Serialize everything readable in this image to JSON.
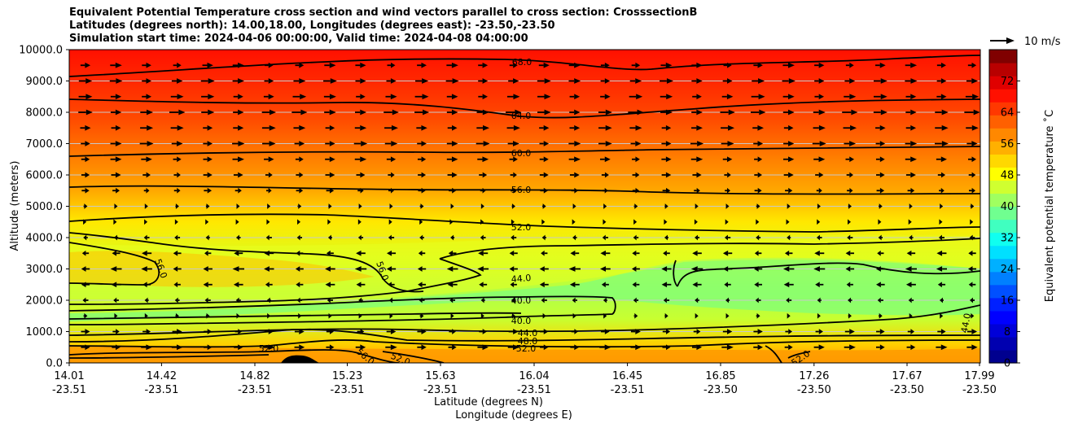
{
  "title": {
    "line1": "Equivalent Potential Temperature cross section and wind vectors parallel to cross section: CrosssectionB",
    "line2": "Latitudes (degrees north): 14.00,18.00, Longitudes (degrees east): -23.50,-23.50",
    "line3": "Simulation start time: 2024-04-06 00:00:00, Valid time: 2024-04-08 04:00:00"
  },
  "chart_data": {
    "type": "contour",
    "title": "Equivalent Potential Temperature cross section and wind vectors parallel to cross section: CrosssectionB",
    "ylabel": "Altitude (meters)",
    "xlabel_lat": "Latitude (degrees N)",
    "xlabel_lon": "Longitude (degrees E)",
    "ylim": [
      0,
      10000
    ],
    "yticks": [
      "0.0",
      "1000.0",
      "2000.0",
      "3000.0",
      "4000.0",
      "5000.0",
      "6000.0",
      "7000.0",
      "8000.0",
      "9000.0",
      "10000.0"
    ],
    "xticks": [
      {
        "lat": "14.01",
        "lon": "-23.51"
      },
      {
        "lat": "14.42",
        "lon": "-23.51"
      },
      {
        "lat": "14.82",
        "lon": "-23.51"
      },
      {
        "lat": "15.23",
        "lon": "-23.51"
      },
      {
        "lat": "15.63",
        "lon": "-23.51"
      },
      {
        "lat": "16.04",
        "lon": "-23.51"
      },
      {
        "lat": "16.45",
        "lon": "-23.51"
      },
      {
        "lat": "16.85",
        "lon": "-23.50"
      },
      {
        "lat": "17.26",
        "lon": "-23.50"
      },
      {
        "lat": "17.67",
        "lon": "-23.50"
      },
      {
        "lat": "17.99",
        "lon": "-23.50"
      }
    ],
    "colorbar": {
      "label": "Equivalent potential temperature ˚C",
      "range": [
        0,
        80
      ],
      "ticks": [
        "0",
        "8",
        "16",
        "24",
        "32",
        "40",
        "48",
        "56",
        "64",
        "72"
      ]
    },
    "quiver_key": "10 m/s",
    "contour_levels": [
      {
        "value": 68.0,
        "altitude_m": 9500
      },
      {
        "value": 64.0,
        "altitude_m": 8400
      },
      {
        "value": 60.0,
        "altitude_m": 6600
      },
      {
        "value": 56.0,
        "altitude_m": 5550
      },
      {
        "value": 52.0,
        "altitude_m": 4500
      },
      {
        "value": 44.0,
        "altitude_m": 2700
      },
      {
        "value": 40.0,
        "altitude_m": 2000
      },
      {
        "value": 40.0,
        "altitude_m": 1400
      },
      {
        "value": 44.0,
        "altitude_m": 1000
      },
      {
        "value": 48.0,
        "altitude_m": 750
      },
      {
        "value": 52.0,
        "altitude_m": 500
      },
      {
        "value": 56.0,
        "altitude_m": 150
      }
    ],
    "contour_labels": [
      "68.0",
      "64.0",
      "60.0",
      "56.0",
      "52.0",
      "44.0",
      "40.0",
      "40.0",
      "44.0",
      "48.0",
      "52.0",
      "56.0",
      "52.0",
      "52.0",
      "56.0",
      "56.0",
      "44.0",
      "52.0"
    ],
    "wind_layers": [
      {
        "altitude_m": 9500,
        "u": 6
      },
      {
        "altitude_m": 9000,
        "u": 7
      },
      {
        "altitude_m": 8500,
        "u": 7
      },
      {
        "altitude_m": 8000,
        "u": 8
      },
      {
        "altitude_m": 7500,
        "u": 7
      },
      {
        "altitude_m": 7000,
        "u": 7
      },
      {
        "altitude_m": 6500,
        "u": 6
      },
      {
        "altitude_m": 6000,
        "u": 5
      },
      {
        "altitude_m": 5500,
        "u": 4
      },
      {
        "altitude_m": 5000,
        "u": 2
      },
      {
        "altitude_m": 4500,
        "u": 1
      },
      {
        "altitude_m": 4000,
        "u": -3
      },
      {
        "altitude_m": 3500,
        "u": -5
      },
      {
        "altitude_m": 3000,
        "u": -6
      },
      {
        "altitude_m": 2500,
        "u": -5
      },
      {
        "altitude_m": 2000,
        "u": -3
      },
      {
        "altitude_m": 1500,
        "u": 2
      },
      {
        "altitude_m": 1000,
        "u": 5
      },
      {
        "altitude_m": 500,
        "u": 6
      }
    ]
  }
}
